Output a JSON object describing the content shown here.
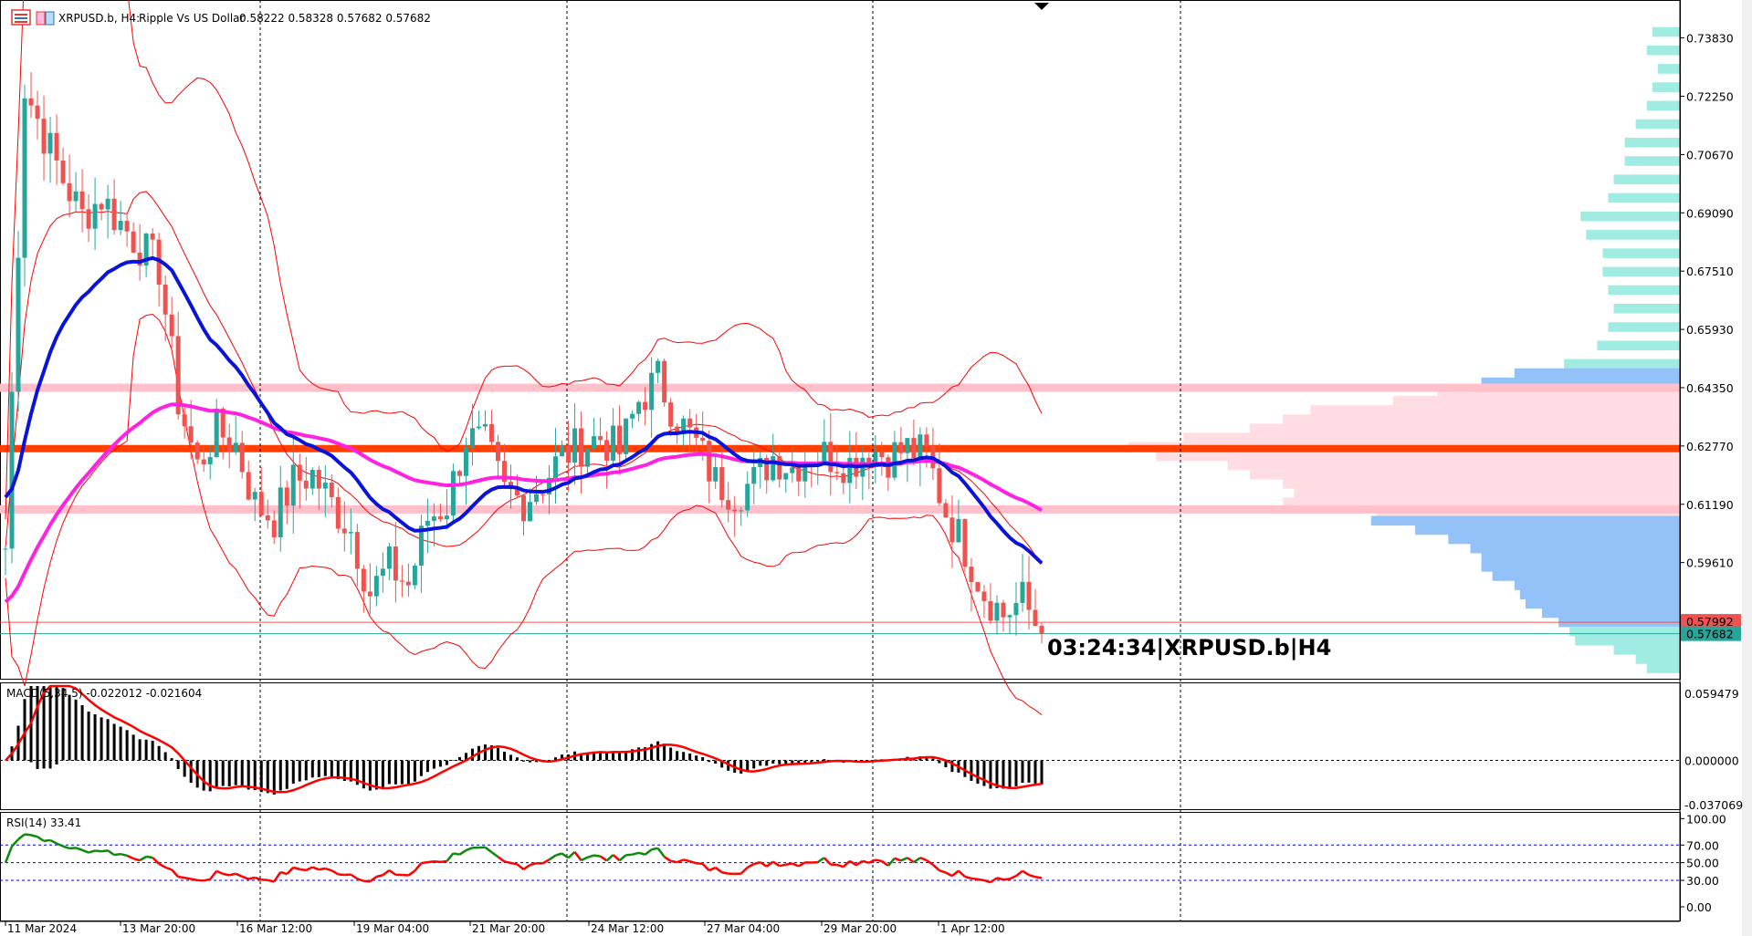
{
  "header": {
    "symbol": "XRPUSD.b, H4:",
    "description": "Ripple Vs US Dollar",
    "ohlc": "0.58222 0.58328 0.57682 0.57682",
    "icons": [
      "trade-list-icon",
      "one-click-trading-icon"
    ]
  },
  "countdown_label": "03:24:34|XRPUSD.b|H4",
  "price_axis": {
    "ticks": [
      "0.73830",
      "0.72250",
      "0.70670",
      "0.69090",
      "0.67510",
      "0.65930",
      "0.64350",
      "0.62770",
      "0.61190",
      "0.59610"
    ],
    "tick_values": [
      0.7383,
      0.7225,
      0.7067,
      0.6909,
      0.6751,
      0.6593,
      0.6435,
      0.6277,
      0.6119,
      0.5961
    ],
    "bid_label": "0.57682",
    "bid": 0.57682,
    "ask_label": "0.57992",
    "ask": 0.57992
  },
  "levels": {
    "resistance": 0.6435,
    "pivot": 0.627,
    "support": 0.6105
  },
  "time_axis": [
    "11 Mar 2024",
    "13 Mar 20:00",
    "16 Mar 12:00",
    "19 Mar 04:00",
    "21 Mar 20:00",
    "24 Mar 12:00",
    "27 Mar 04:00",
    "29 Mar 20:00",
    "1 Apr 12:00"
  ],
  "macd": {
    "label": "MACD(5,34,5) -0.022012 -0.021604",
    "ticks": [
      "0.059479",
      "0.000000",
      "-0.037069"
    ],
    "tick_values": [
      0.059479,
      0,
      -0.037069
    ]
  },
  "rsi": {
    "label": "RSI(14) 33.41",
    "ticks": [
      "100.00",
      "70.00",
      "50.00",
      "30.00",
      "0.00"
    ],
    "tick_values": [
      100,
      70,
      50,
      30,
      0
    ]
  },
  "colors": {
    "bull": "#26a69a",
    "bear": "#ef5350",
    "ma_fast": "#0a14d8",
    "ma_slow": "#ff22e0",
    "bands": "#ff0000",
    "pivot_line": "#ff4000",
    "zone_line": "#ffc0cb",
    "profile_outer": "#a0ece2",
    "profile_edge": "#92c2f8",
    "profile_value_area": "#ffdde3"
  },
  "chart_data": {
    "type": "candlestick",
    "closes": [
      0.6,
      0.725,
      0.712,
      0.7,
      0.69,
      0.695,
      0.688,
      0.682,
      0.676,
      0.64,
      0.622,
      0.632,
      0.628,
      0.612,
      0.608,
      0.618,
      0.62,
      0.612,
      0.605,
      0.588,
      0.595,
      0.59,
      0.608,
      0.612,
      0.63,
      0.628,
      0.615,
      0.613,
      0.618,
      0.625,
      0.628,
      0.63,
      0.626,
      0.64,
      0.646,
      0.635,
      0.628,
      0.618,
      0.615,
      0.618,
      0.625,
      0.622,
      0.626,
      0.625,
      0.623,
      0.627,
      0.625,
      0.627,
      0.625,
      0.61,
      0.6,
      0.588,
      0.582,
      0.586,
      0.57682
    ],
    "volume_profile": [
      [
        0.74,
        0.05,
        "outer"
      ],
      [
        0.735,
        0.06,
        "outer"
      ],
      [
        0.73,
        0.04,
        "outer"
      ],
      [
        0.725,
        0.05,
        "outer"
      ],
      [
        0.72,
        0.06,
        "outer"
      ],
      [
        0.715,
        0.08,
        "outer"
      ],
      [
        0.71,
        0.1,
        "outer"
      ],
      [
        0.705,
        0.1,
        "outer"
      ],
      [
        0.7,
        0.12,
        "outer"
      ],
      [
        0.695,
        0.13,
        "outer"
      ],
      [
        0.69,
        0.18,
        "outer"
      ],
      [
        0.685,
        0.17,
        "outer"
      ],
      [
        0.68,
        0.14,
        "outer"
      ],
      [
        0.675,
        0.14,
        "outer"
      ],
      [
        0.67,
        0.13,
        "outer"
      ],
      [
        0.665,
        0.12,
        "outer"
      ],
      [
        0.66,
        0.13,
        "outer"
      ],
      [
        0.655,
        0.15,
        "outer"
      ],
      [
        0.65,
        0.21,
        "outer"
      ],
      [
        0.6475,
        0.3,
        "edge"
      ],
      [
        0.645,
        0.36,
        "edge"
      ],
      [
        0.6425,
        0.44,
        "value"
      ],
      [
        0.64,
        0.52,
        "value"
      ],
      [
        0.6375,
        0.67,
        "value"
      ],
      [
        0.635,
        0.72,
        "value"
      ],
      [
        0.6325,
        0.78,
        "value"
      ],
      [
        0.63,
        0.9,
        "value"
      ],
      [
        0.6275,
        1.0,
        "value"
      ],
      [
        0.625,
        0.95,
        "value"
      ],
      [
        0.6225,
        0.82,
        "value"
      ],
      [
        0.62,
        0.78,
        "value"
      ],
      [
        0.6175,
        0.72,
        "value"
      ],
      [
        0.615,
        0.7,
        "value"
      ],
      [
        0.6125,
        0.72,
        "value"
      ],
      [
        0.61,
        0.55,
        "value"
      ],
      [
        0.6075,
        0.56,
        "edge"
      ],
      [
        0.605,
        0.48,
        "edge"
      ],
      [
        0.6025,
        0.42,
        "edge"
      ],
      [
        0.6,
        0.38,
        "edge"
      ],
      [
        0.5975,
        0.36,
        "edge"
      ],
      [
        0.595,
        0.36,
        "edge"
      ],
      [
        0.5925,
        0.34,
        "edge"
      ],
      [
        0.59,
        0.3,
        "edge"
      ],
      [
        0.5875,
        0.29,
        "edge"
      ],
      [
        0.585,
        0.28,
        "edge"
      ],
      [
        0.5825,
        0.25,
        "edge"
      ],
      [
        0.58,
        0.22,
        "edge"
      ],
      [
        0.5775,
        0.2,
        "outer"
      ],
      [
        0.575,
        0.19,
        "outer"
      ],
      [
        0.5725,
        0.12,
        "outer"
      ],
      [
        0.57,
        0.08,
        "outer"
      ],
      [
        0.5675,
        0.06,
        "outer"
      ]
    ]
  }
}
